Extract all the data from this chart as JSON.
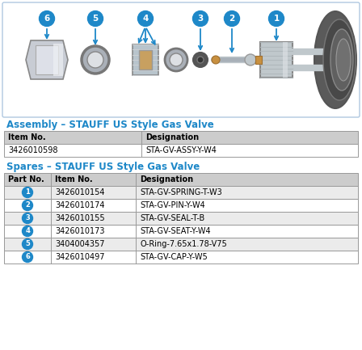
{
  "title": "Assembly – STAUFF US Style Gas Valve",
  "spares_title": "Spares – STAUFF US Style Gas Valve",
  "assembly_headers": [
    "Item No.",
    "Designation"
  ],
  "assembly_rows": [
    [
      "3426010598",
      "STA-GV-ASSY-Y-W4"
    ]
  ],
  "spares_headers": [
    "Part No.",
    "Item No.",
    "Designation"
  ],
  "spares_rows": [
    [
      "1",
      "3426010154",
      "STA-GV-SPRING-T-W3"
    ],
    [
      "2",
      "3426010174",
      "STA-GV-PIN-Y-W4"
    ],
    [
      "3",
      "3426010155",
      "STA-GV-SEAL-T-B"
    ],
    [
      "4",
      "3426010173",
      "STA-GV-SEAT-Y-W4"
    ],
    [
      "5",
      "3404004357",
      "O-Ring-7.65x1.78-V75"
    ],
    [
      "6",
      "3426010497",
      "STA-GV-CAP-Y-W5"
    ]
  ],
  "header_bg": "#cccccc",
  "row_bg_even": "#ebebeb",
  "row_bg_odd": "#ffffff",
  "title_color": "#1e88c8",
  "bullet_color": "#1e88c8",
  "border_color": "#999999",
  "fig_bg": "#ffffff",
  "img_box_bg": "#ffffff",
  "img_box_border": "#b0c8e0"
}
